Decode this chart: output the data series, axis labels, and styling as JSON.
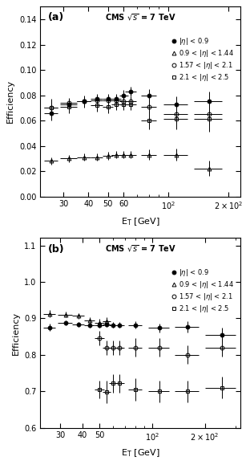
{
  "panel_a": {
    "title_label": "(a)",
    "cms_label": "CMS $\\sqrt{s}$ = 7 TeV",
    "ylabel": "Efficiency",
    "xlabel": "E$_{\\mathrm{T}}$ [GeV]",
    "ylim": [
      0,
      0.15
    ],
    "xlim": [
      23,
      230
    ],
    "yticks": [
      0,
      0.02,
      0.04,
      0.06,
      0.08,
      0.1,
      0.12,
      0.14
    ],
    "xticks": [
      30,
      40,
      50,
      60,
      100,
      200
    ],
    "xtick_labels": [
      "30",
      "40",
      "50",
      "60",
      "$10^2$",
      "$2\\times10^2$"
    ],
    "series": [
      {
        "label": "|$\\eta$| < 0.9",
        "marker": "o",
        "fillstyle": "full",
        "color": "black",
        "zorder": 5,
        "x": [
          26,
          32,
          38,
          44,
          50,
          55,
          60,
          65,
          80,
          110,
          160
        ],
        "y": [
          0.066,
          0.073,
          0.075,
          0.077,
          0.077,
          0.077,
          0.08,
          0.083,
          0.08,
          0.073,
          0.075
        ],
        "xerr": [
          2,
          3,
          3,
          3,
          3,
          3,
          3,
          4,
          7,
          15,
          25
        ],
        "yerr": [
          0.006,
          0.004,
          0.004,
          0.004,
          0.004,
          0.004,
          0.004,
          0.004,
          0.005,
          0.006,
          0.008
        ]
      },
      {
        "label": "0.9 < |$\\eta$| < 1.44",
        "marker": "^",
        "fillstyle": "none",
        "color": "black",
        "zorder": 3,
        "x": [
          26,
          32,
          38,
          44,
          50,
          55,
          60,
          65,
          80,
          110,
          160
        ],
        "y": [
          0.028,
          0.03,
          0.031,
          0.031,
          0.032,
          0.033,
          0.033,
          0.033,
          0.033,
          0.033,
          0.022
        ],
        "xerr": [
          2,
          3,
          3,
          3,
          3,
          3,
          3,
          4,
          7,
          15,
          25
        ],
        "yerr": [
          0.003,
          0.003,
          0.003,
          0.003,
          0.003,
          0.003,
          0.003,
          0.003,
          0.004,
          0.005,
          0.006
        ]
      },
      {
        "label": "1.57 < |$\\eta$| < 2.1",
        "marker": "o",
        "fillstyle": "none",
        "color": "black",
        "zorder": 3,
        "x": [
          26,
          32,
          38,
          44,
          50,
          55,
          60,
          65,
          80,
          110,
          160
        ],
        "y": [
          0.07,
          0.074,
          0.075,
          0.076,
          0.076,
          0.076,
          0.075,
          0.075,
          0.071,
          0.065,
          0.065
        ],
        "xerr": [
          2,
          3,
          3,
          3,
          3,
          3,
          3,
          4,
          7,
          15,
          25
        ],
        "yerr": [
          0.006,
          0.004,
          0.004,
          0.004,
          0.004,
          0.004,
          0.004,
          0.004,
          0.005,
          0.007,
          0.009
        ]
      },
      {
        "label": "2.1 < |$\\eta$| < 2.5",
        "marker": "s",
        "fillstyle": "none",
        "color": "black",
        "zorder": 3,
        "x": [
          26,
          32,
          38,
          44,
          50,
          55,
          60,
          65,
          80,
          110,
          160
        ],
        "y": [
          0.07,
          0.071,
          0.075,
          0.072,
          0.071,
          0.073,
          0.073,
          0.073,
          0.06,
          0.061,
          0.061
        ],
        "xerr": [
          2,
          3,
          3,
          3,
          3,
          3,
          3,
          4,
          7,
          15,
          25
        ],
        "yerr": [
          0.007,
          0.005,
          0.005,
          0.005,
          0.005,
          0.005,
          0.005,
          0.005,
          0.007,
          0.008,
          0.01
        ]
      }
    ]
  },
  "panel_b": {
    "title_label": "(b)",
    "cms_label": "CMS $\\sqrt{s}$ = 7 TeV",
    "ylabel": "Efficiency",
    "xlabel": "E$_{\\mathrm{T}}$ [GeV]",
    "ylim": [
      0.6,
      1.12
    ],
    "xlim": [
      23,
      320
    ],
    "yticks": [
      0.6,
      0.7,
      0.8,
      0.9,
      1.0,
      1.1
    ],
    "xticks": [
      30,
      40,
      50,
      100,
      200
    ],
    "xtick_labels": [
      "30",
      "40",
      "50",
      "$10^2$",
      "$2\\times10^2$"
    ],
    "series": [
      {
        "label": "|$\\eta$| < 0.9",
        "marker": "o",
        "fillstyle": "full",
        "color": "black",
        "zorder": 5,
        "x": [
          26,
          32,
          38,
          44,
          50,
          55,
          60,
          65,
          80,
          110,
          160,
          250
        ],
        "y": [
          0.875,
          0.888,
          0.883,
          0.882,
          0.882,
          0.884,
          0.882,
          0.882,
          0.882,
          0.874,
          0.877,
          0.855
        ],
        "xerr": [
          2,
          3,
          3,
          3,
          3,
          3,
          3,
          4,
          7,
          15,
          25,
          50
        ],
        "yerr": [
          0.01,
          0.007,
          0.007,
          0.007,
          0.007,
          0.007,
          0.007,
          0.007,
          0.01,
          0.012,
          0.015,
          0.02
        ]
      },
      {
        "label": "0.9 < |$\\eta$| < 1.44",
        "marker": "^",
        "fillstyle": "none",
        "color": "black",
        "zorder": 3,
        "x": [
          26,
          32,
          38,
          44,
          50,
          55
        ],
        "y": [
          0.912,
          0.91,
          0.907,
          0.895,
          0.888,
          0.892
        ],
        "xerr": [
          2,
          3,
          3,
          3,
          3,
          3
        ],
        "yerr": [
          0.01,
          0.008,
          0.008,
          0.008,
          0.01,
          0.01
        ]
      },
      {
        "label": "1.57 < |$\\eta$| < 2.1",
        "marker": "o",
        "fillstyle": "none",
        "color": "black",
        "zorder": 3,
        "x": [
          50,
          55,
          60,
          65,
          80,
          110,
          160,
          250
        ],
        "y": [
          0.845,
          0.82,
          0.82,
          0.82,
          0.82,
          0.82,
          0.8,
          0.82
        ],
        "xerr": [
          3,
          3,
          3,
          4,
          7,
          15,
          25,
          50
        ],
        "yerr": [
          0.02,
          0.02,
          0.02,
          0.02,
          0.025,
          0.025,
          0.025,
          0.025
        ]
      },
      {
        "label": "2.1 < |$\\eta$| < 2.5",
        "marker": "s",
        "fillstyle": "none",
        "color": "black",
        "zorder": 3,
        "x": [
          50,
          55,
          60,
          65,
          80,
          110,
          160,
          250
        ],
        "y": [
          0.705,
          0.698,
          0.722,
          0.722,
          0.705,
          0.7,
          0.7,
          0.71
        ],
        "xerr": [
          3,
          3,
          3,
          4,
          7,
          15,
          25,
          50
        ],
        "yerr": [
          0.025,
          0.03,
          0.025,
          0.025,
          0.03,
          0.03,
          0.03,
          0.03
        ]
      }
    ]
  }
}
